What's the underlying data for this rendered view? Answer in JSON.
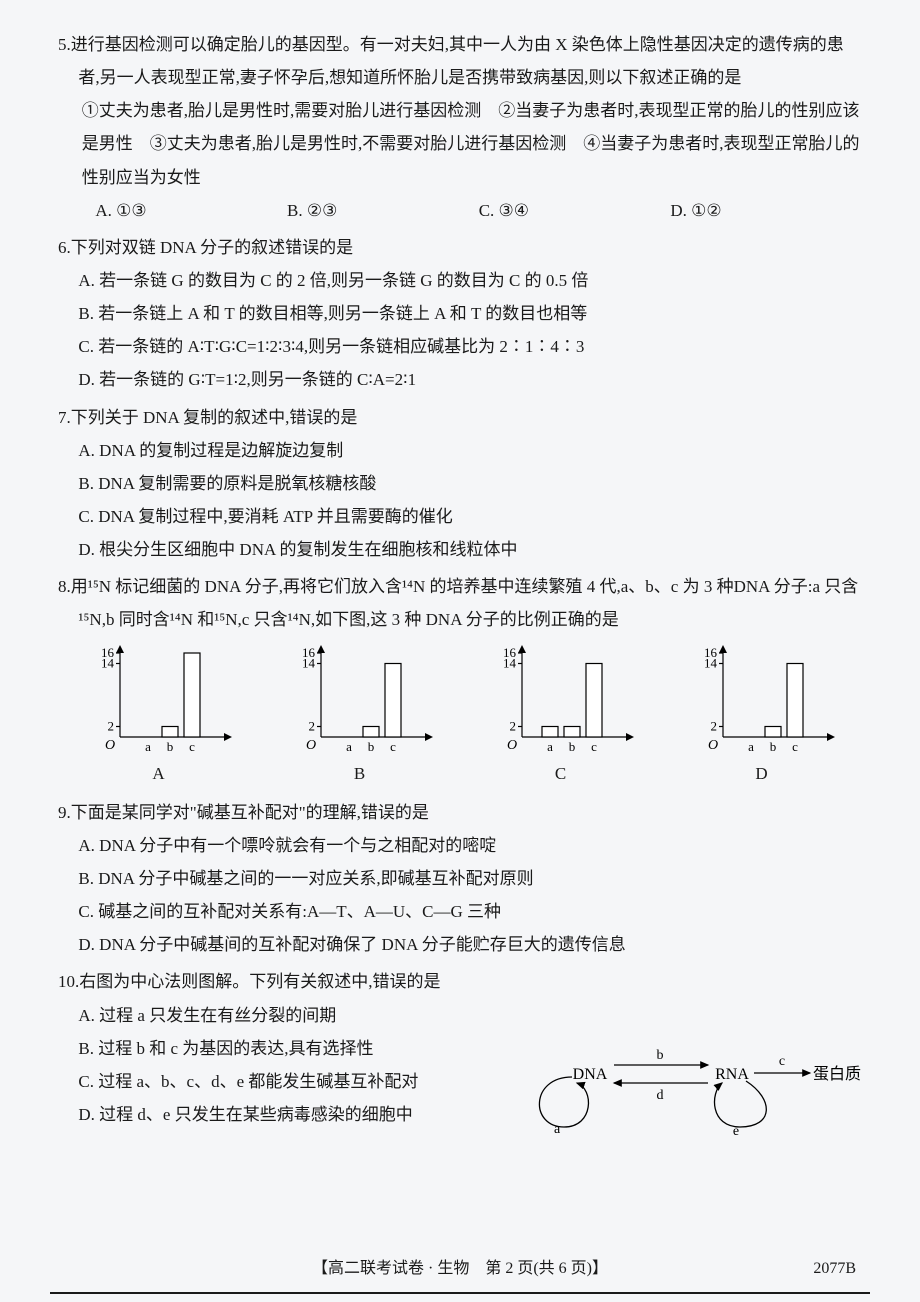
{
  "q5": {
    "num": "5.",
    "text": "进行基因检测可以确定胎儿的基因型。有一对夫妇,其中一人为由 X 染色体上隐性基因决定的遗传病的患者,另一人表现型正常,妻子怀孕后,想知道所怀胎儿是否携带致病基因,则以下叙述正确的是",
    "stmts": "①丈夫为患者,胎儿是男性时,需要对胎儿进行基因检测　②当妻子为患者时,表现型正常的胎儿的性别应该是男性　③丈夫为患者,胎儿是男性时,不需要对胎儿进行基因检测　④当妻子为患者时,表现型正常胎儿的性别应当为女性",
    "opts": {
      "a": "A. ①③",
      "b": "B. ②③",
      "c": "C. ③④",
      "d": "D. ①②"
    }
  },
  "q6": {
    "num": "6.",
    "text": "下列对双链 DNA 分子的叙述错误的是",
    "opts": {
      "a": "A. 若一条链 G 的数目为 C 的 2 倍,则另一条链 G 的数目为 C 的 0.5 倍",
      "b": "B. 若一条链上 A 和 T 的数目相等,则另一条链上 A 和 T 的数目也相等",
      "c": "C. 若一条链的 A∶T∶G∶C=1∶2∶3∶4,则另一条链相应碱基比为 2∶1∶4∶3",
      "d": "D. 若一条链的 G∶T=1∶2,则另一条链的 C∶A=2∶1"
    }
  },
  "q7": {
    "num": "7.",
    "text": "下列关于 DNA 复制的叙述中,错误的是",
    "opts": {
      "a": "A. DNA 的复制过程是边解旋边复制",
      "b": "B. DNA 复制需要的原料是脱氧核糖核酸",
      "c": "C. DNA 复制过程中,要消耗 ATP 并且需要酶的催化",
      "d": "D. 根尖分生区细胞中 DNA 的复制发生在细胞核和线粒体中"
    }
  },
  "q8": {
    "num": "8.",
    "text": "用¹⁵N 标记细菌的 DNA 分子,再将它们放入含¹⁴N 的培养基中连续繁殖 4 代,a、b、c 为 3 种DNA 分子:a 只含¹⁵N,b 同时含¹⁴N 和¹⁵N,c 只含¹⁴N,如下图,这 3 种 DNA 分子的比例正确的是",
    "charts": {
      "yticks": [
        "16",
        "14",
        "2"
      ],
      "xcats": [
        "a",
        "b",
        "c"
      ],
      "colors": {
        "axis": "#000000",
        "bar_stroke": "#000000",
        "bar_fill": "#ffffff"
      },
      "data": {
        "A": {
          "a": 0,
          "b": 2,
          "c": 16
        },
        "B": {
          "a": 0,
          "b": 2,
          "c": 14
        },
        "C": {
          "a": 2,
          "b": 2,
          "c": 14
        },
        "D": {
          "a": 0,
          "b": 2,
          "c": 14
        }
      },
      "labels": {
        "A": "A",
        "B": "B",
        "C": "C",
        "D": "D"
      }
    }
  },
  "q9": {
    "num": "9.",
    "text": "下面是某同学对\"碱基互补配对\"的理解,错误的是",
    "opts": {
      "a": "A. DNA 分子中有一个嘌呤就会有一个与之相配对的嘧啶",
      "b": "B. DNA 分子中碱基之间的一一对应关系,即碱基互补配对原则",
      "c": "C. 碱基之间的互补配对关系有:A—T、A—U、C—G 三种",
      "d": "D. DNA 分子中碱基间的互补配对确保了 DNA 分子能贮存巨大的遗传信息"
    }
  },
  "q10": {
    "num": "10.",
    "text": "右图为中心法则图解。下列有关叙述中,错误的是",
    "opts": {
      "a": "A. 过程 a 只发生在有丝分裂的间期",
      "b": "B. 过程 b 和 c 为基因的表达,具有选择性",
      "c": "C. 过程 a、b、c、d、e 都能发生碱基互补配对",
      "d": "D. 过程 d、e 只发生在某些病毒感染的细胞中"
    },
    "diagram": {
      "nodes": {
        "dna": "DNA",
        "rna": "RNA",
        "protein": "蛋白质"
      },
      "edges": {
        "a": "a",
        "b": "b",
        "c": "c",
        "d": "d",
        "e": "e"
      },
      "color": "#000000"
    }
  },
  "footer": {
    "text": "【高二联考试卷 · 生物　第 2 页(共 6 页)】",
    "code": "2077B"
  }
}
